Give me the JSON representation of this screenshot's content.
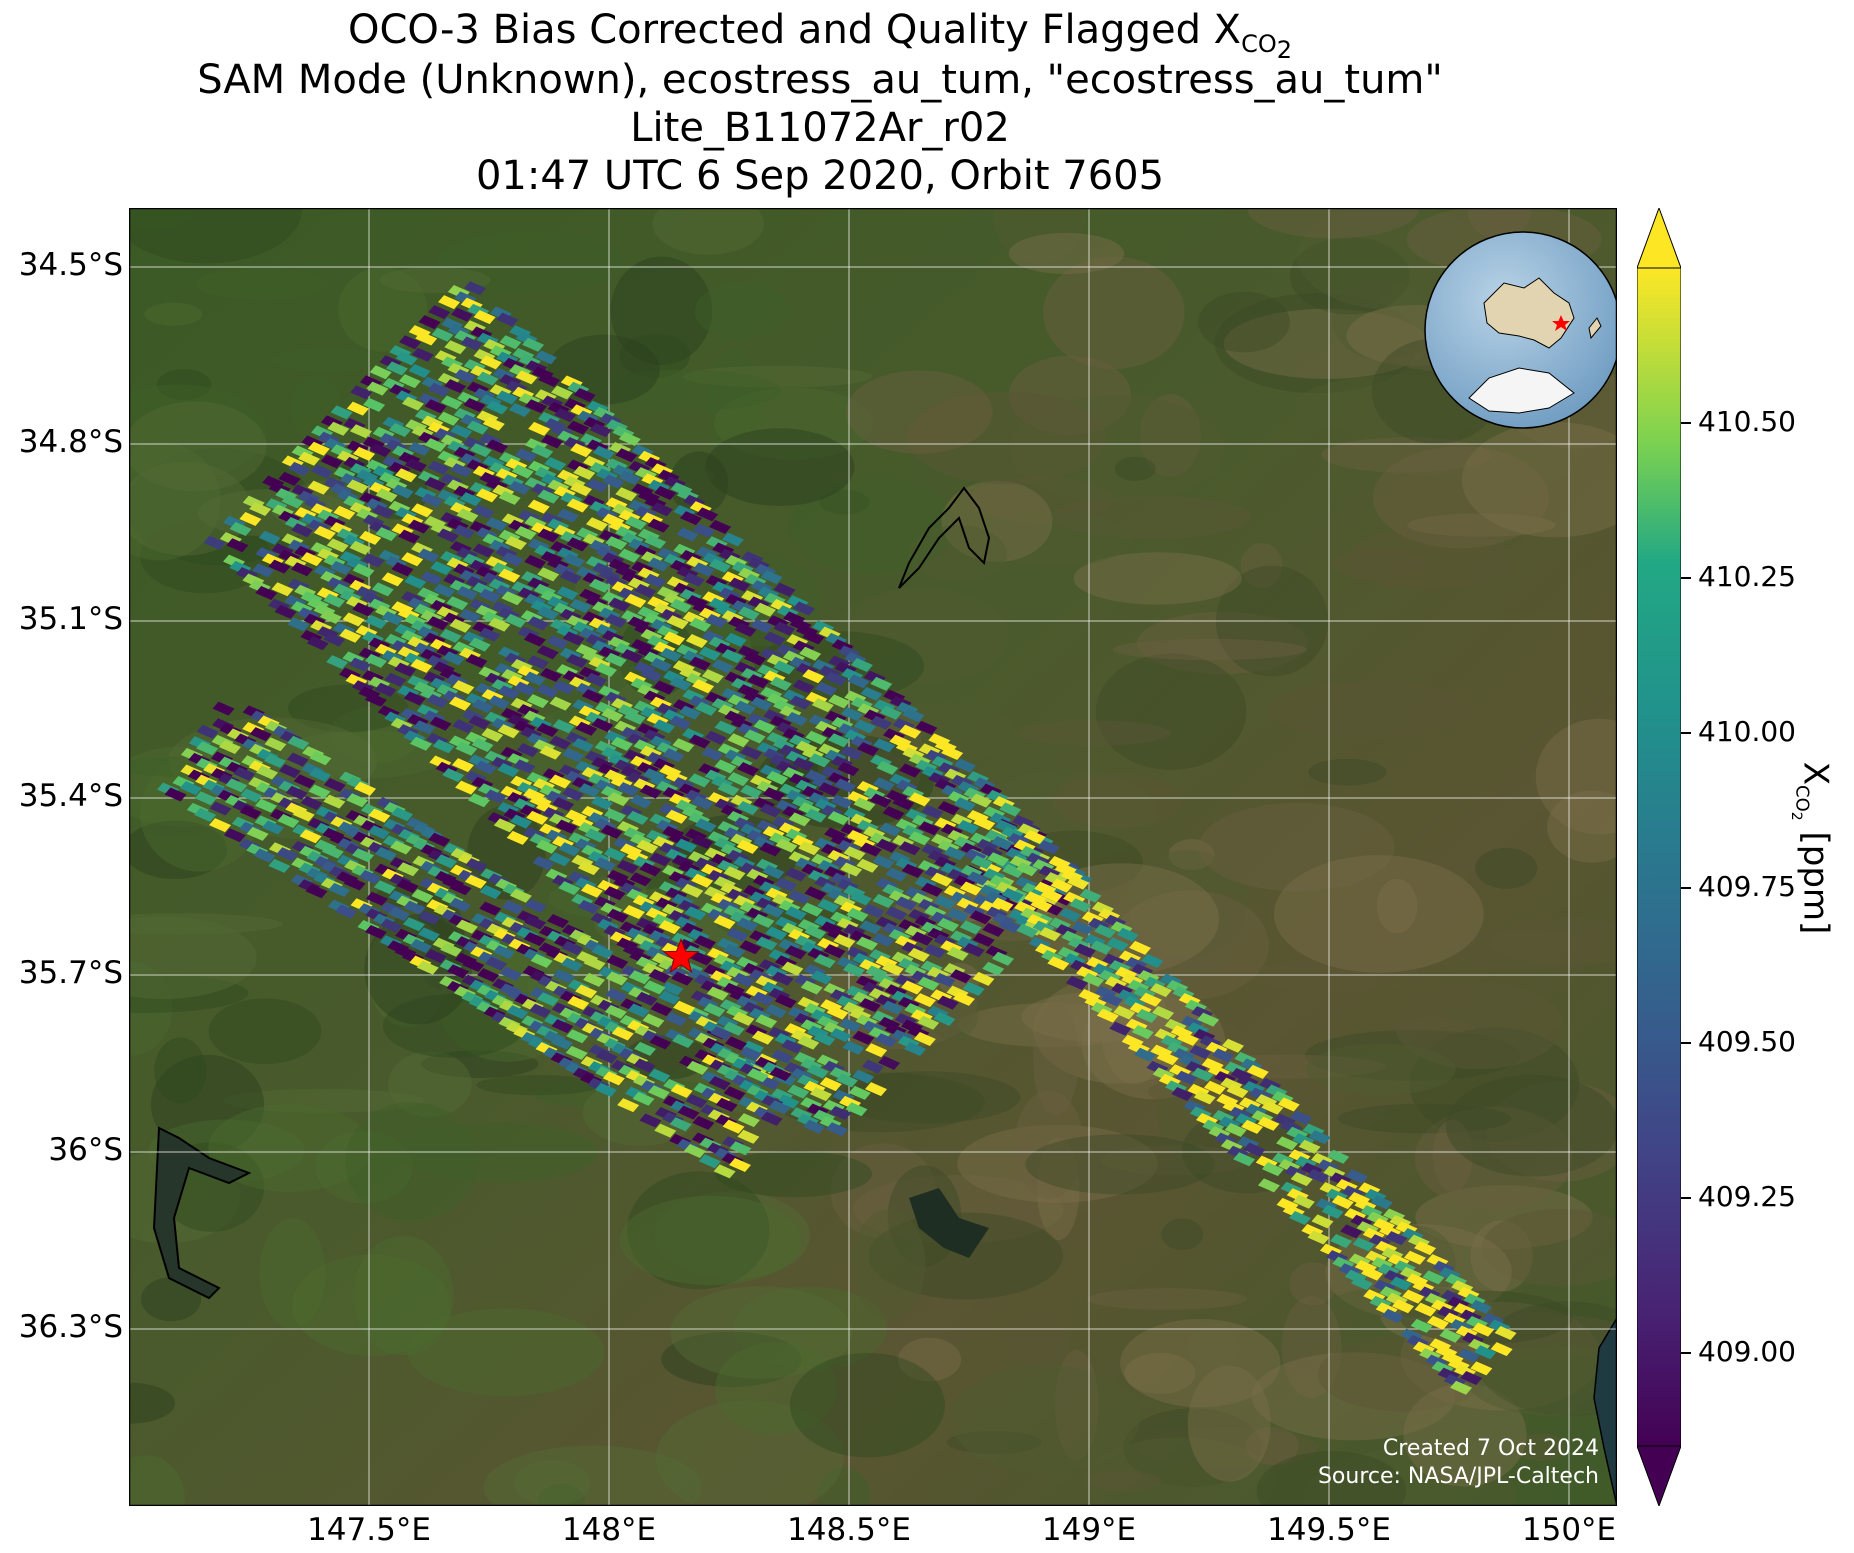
{
  "title": {
    "line1_prefix": "OCO-3 Bias Corrected and Quality Flagged X",
    "line1_sub": "CO",
    "line1_subsub": "2",
    "line2": "SAM Mode (Unknown), ecostress_au_tum, \"ecostress_au_tum\"",
    "line3": "Lite_B11072Ar_r02",
    "line4": "01:47 UTC 6 Sep 2020, Orbit 7605"
  },
  "map": {
    "lon_range": [
      147.0,
      150.1
    ],
    "lat_range": [
      -36.6,
      -34.4
    ],
    "lat_ticks": [
      "34.5°S",
      "34.8°S",
      "35.1°S",
      "35.4°S",
      "35.7°S",
      "36°S",
      "36.3°S"
    ],
    "lat_values": [
      -34.5,
      -34.8,
      -35.1,
      -35.4,
      -35.7,
      -36.0,
      -36.3
    ],
    "lon_ticks": [
      "147.5°E",
      "148°E",
      "148.5°E",
      "149°E",
      "149.5°E",
      "150°E"
    ],
    "lon_values": [
      147.5,
      148.0,
      148.5,
      149.0,
      149.5,
      150.0
    ],
    "grid": true,
    "target_marker": {
      "lon": 148.15,
      "lat": -35.67,
      "symbol": "star",
      "color": "#ff0000"
    },
    "inset": "globe centred on Australia with red star",
    "colors": {
      "land": "#3f5a26",
      "ocean": "#2a3f3a",
      "grid": "#ffffff"
    }
  },
  "colorbar": {
    "min": 408.85,
    "max": 410.75,
    "ticks": [
      "410.50",
      "410.25",
      "410.00",
      "409.75",
      "409.50",
      "409.25",
      "409.00"
    ],
    "tick_values": [
      410.5,
      410.25,
      410.0,
      409.75,
      409.5,
      409.25,
      409.0
    ],
    "label_prefix": "X",
    "label_sub": "CO",
    "label_subsub": "2",
    "label_suffix": " [ppm]",
    "colormap": "viridis",
    "extend": "both"
  },
  "credits": {
    "created": "Created 7 Oct 2024",
    "source": "Source: NASA/JPL-Caltech"
  },
  "chart_data": {
    "type": "scatter",
    "description_of_swaths": [
      {
        "lon_start": 147.45,
        "lat_start": -34.72,
        "lon_end": 148.75,
        "lat_end": -35.75
      },
      {
        "lon_start": 147.15,
        "lat_start": -35.28,
        "lon_end": 148.35,
        "lat_end": -35.95
      },
      {
        "lon_start": 148.8,
        "lat_start": -35.45,
        "lon_end": 149.85,
        "lat_end": -36.35
      }
    ]
  }
}
